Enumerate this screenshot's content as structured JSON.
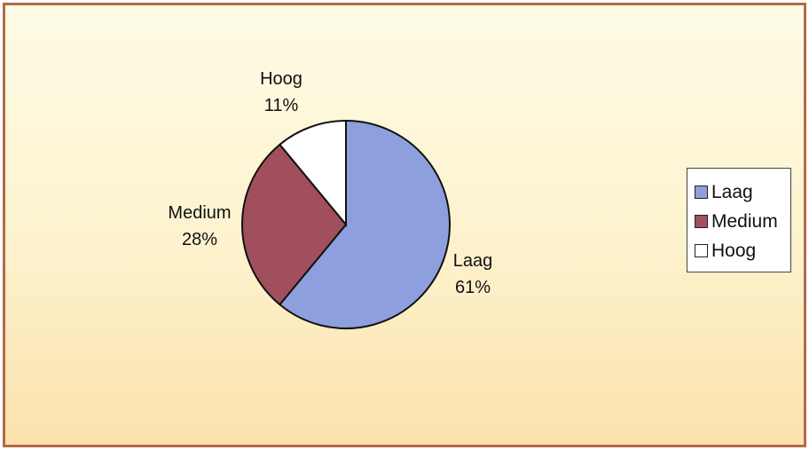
{
  "chart_data": {
    "type": "pie",
    "slices": [
      {
        "label": "Laag",
        "value": 61,
        "pct_label": "61%",
        "color": "#8d9fdc"
      },
      {
        "label": "Medium",
        "value": 28,
        "pct_label": "28%",
        "color": "#a14f5c"
      },
      {
        "label": "Hoog",
        "value": 11,
        "pct_label": "11%",
        "color": "#ffffff"
      }
    ],
    "legend": {
      "position": "right",
      "entries": [
        "Laag",
        "Medium",
        "Hoog"
      ]
    },
    "colors": {
      "border": "#b4694a",
      "outline": "#111111"
    }
  }
}
